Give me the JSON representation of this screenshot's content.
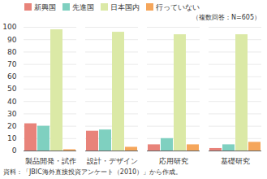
{
  "chart_data": {
    "type": "bar",
    "annotation": "（複数回答：N=605）",
    "caption": "資料：「JBIC海外直接投資アンケート（2010）」から作成。",
    "categories": [
      "製品開発・試作",
      "設計・デザイン",
      "応用研究",
      "基礎研究"
    ],
    "series": [
      {
        "name": "新興国",
        "color": "#e8837a",
        "values": [
          22,
          16,
          5,
          2
        ]
      },
      {
        "name": "先進国",
        "color": "#7fd0c0",
        "values": [
          20,
          17,
          10,
          5
        ]
      },
      {
        "name": "日本国内",
        "color": "#dbe9a6",
        "values": [
          98,
          96,
          94,
          94
        ]
      },
      {
        "name": "行っていない",
        "color": "#f5a65b",
        "values": [
          1,
          3,
          5,
          7
        ]
      }
    ],
    "ylim": [
      0,
      100
    ],
    "yticks": [
      0,
      10,
      20,
      30,
      40,
      50,
      60,
      70,
      80,
      90,
      100
    ],
    "grid": true,
    "legend": "top"
  }
}
